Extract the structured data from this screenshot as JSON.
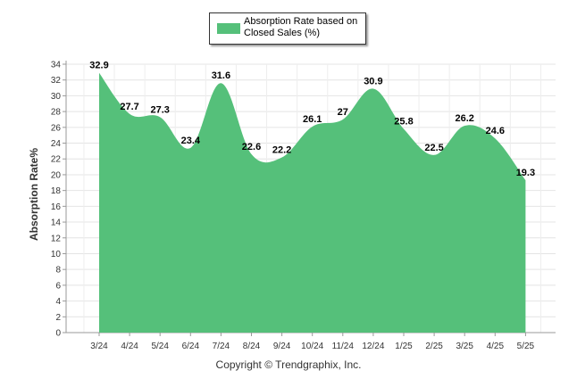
{
  "chart_data": {
    "type": "area",
    "categories": [
      "3/24",
      "4/24",
      "5/24",
      "6/24",
      "7/24",
      "8/24",
      "9/24",
      "10/24",
      "11/24",
      "12/24",
      "1/25",
      "2/25",
      "3/25",
      "4/25",
      "5/25"
    ],
    "series": [
      {
        "name": "Absorption Rate based on Closed Sales (%)",
        "values": [
          32.9,
          27.7,
          27.3,
          23.4,
          31.6,
          22.6,
          22.2,
          26.1,
          27,
          30.9,
          25.8,
          22.5,
          26.2,
          24.6,
          19.3
        ],
        "labels": [
          "32.9",
          "27.7",
          "27.3",
          "23.4",
          "31.6",
          "22.6",
          "22.2",
          "26.1",
          "27",
          "30.9",
          "25.8",
          "22.5",
          "26.2",
          "24.6",
          "19.3"
        ]
      }
    ],
    "ylabel": "Absorption Rate%",
    "xlabel": "",
    "ylim": [
      0,
      34
    ],
    "yticks": [
      0,
      2,
      4,
      6,
      8,
      10,
      12,
      14,
      16,
      18,
      20,
      22,
      24,
      26,
      28,
      30,
      32,
      34
    ],
    "grid": true,
    "legend": "top-center",
    "color": "#55c07a"
  },
  "footer": {
    "copyright": "Copyright © Trendgraphix, Inc."
  }
}
